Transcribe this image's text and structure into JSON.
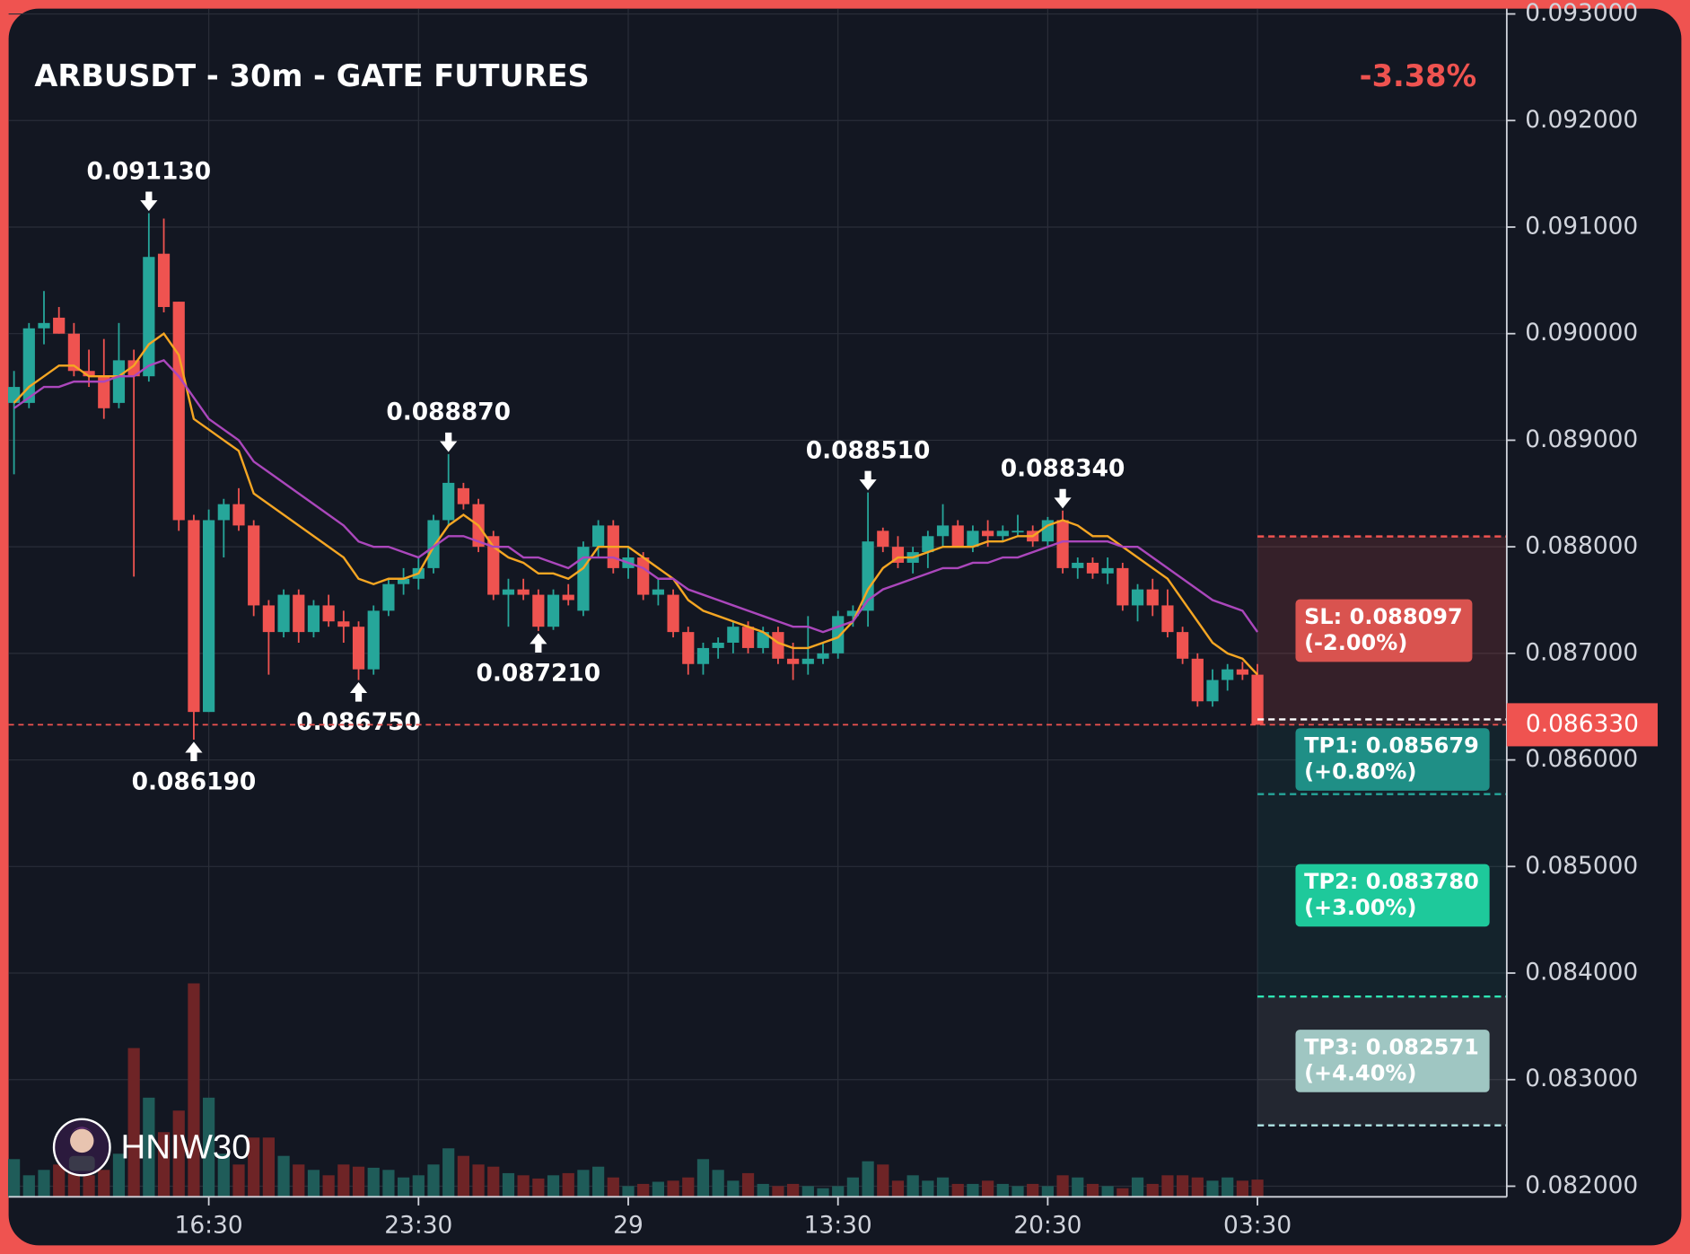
{
  "chart_data": {
    "type": "candlestick",
    "title": "ARBUSDT - 30m - GATE FUTURES",
    "change_label": "-3.38%",
    "watermark": "HNIW30",
    "up_color": "#26a69a",
    "down_color": "#ef5350",
    "grid": true,
    "categories": [
      null,
      null,
      null,
      null,
      null,
      null,
      null,
      null,
      null,
      null,
      null,
      null,
      null,
      "16:30",
      null,
      null,
      null,
      null,
      null,
      null,
      null,
      null,
      null,
      null,
      null,
      null,
      null,
      "23:30",
      null,
      null,
      null,
      null,
      null,
      null,
      null,
      null,
      null,
      null,
      null,
      null,
      null,
      "29",
      null,
      null,
      null,
      null,
      null,
      null,
      null,
      null,
      null,
      null,
      null,
      null,
      null,
      "13:30",
      null,
      null,
      null,
      null,
      null,
      null,
      null,
      null,
      null,
      null,
      null,
      null,
      null,
      "20:30",
      null,
      null,
      null,
      null,
      null,
      null,
      null,
      null,
      null,
      null,
      null,
      null,
      null,
      "03:30"
    ],
    "ohlc": {
      "open": [
        0.08935,
        0.08935,
        0.09005,
        0.09015,
        0.09,
        0.08965,
        0.0896,
        0.08935,
        0.08975,
        0.0896,
        0.09075,
        0.0903,
        0.08825,
        0.08645,
        0.08825,
        0.0884,
        0.0882,
        0.08745,
        0.0872,
        0.08755,
        0.0872,
        0.08745,
        0.0873,
        0.08725,
        0.08685,
        0.0874,
        0.08765,
        0.0877,
        0.0878,
        0.08825,
        0.08855,
        0.0884,
        0.0881,
        0.08755,
        0.0876,
        0.08755,
        0.08725,
        0.08755,
        0.0874,
        0.088,
        0.0882,
        0.0878,
        0.0879,
        0.08755,
        0.08755,
        0.0872,
        0.0869,
        0.08705,
        0.0871,
        0.08725,
        0.08705,
        0.0872,
        0.08695,
        0.0869,
        0.08695,
        0.087,
        0.08735,
        0.0874,
        0.08815,
        0.088,
        0.08785,
        0.08795,
        0.0881,
        0.0882,
        0.088,
        0.08815,
        0.0881,
        0.08815,
        0.08815,
        0.08805,
        0.08825,
        0.0878,
        0.08785,
        0.08775,
        0.0878,
        0.08745,
        0.0876,
        0.08745,
        0.0872,
        0.08695,
        0.08655,
        0.08675,
        0.08685,
        0.0868
      ],
      "high": [
        0.08965,
        0.0901,
        0.0904,
        0.09025,
        0.0901,
        0.08985,
        0.08995,
        0.0901,
        0.08985,
        0.09113,
        0.09108,
        0.0903,
        0.0883,
        0.08835,
        0.08845,
        0.08855,
        0.08825,
        0.0875,
        0.0876,
        0.0876,
        0.0875,
        0.08755,
        0.0874,
        0.0873,
        0.08745,
        0.0877,
        0.0878,
        0.0879,
        0.0883,
        0.08887,
        0.0886,
        0.08845,
        0.08815,
        0.0877,
        0.0877,
        0.0876,
        0.0876,
        0.08765,
        0.08805,
        0.08825,
        0.08825,
        0.088,
        0.08795,
        0.0877,
        0.0876,
        0.08725,
        0.0871,
        0.08715,
        0.0873,
        0.0873,
        0.08725,
        0.08725,
        0.0871,
        0.08735,
        0.0871,
        0.0874,
        0.08745,
        0.08851,
        0.08818,
        0.0881,
        0.088,
        0.08815,
        0.0884,
        0.08825,
        0.0882,
        0.08825,
        0.0882,
        0.0883,
        0.0882,
        0.08828,
        0.08834,
        0.0879,
        0.0879,
        0.0879,
        0.08785,
        0.08765,
        0.0877,
        0.0876,
        0.08725,
        0.087,
        0.08685,
        0.0869,
        0.08692,
        0.0869
      ],
      "low": [
        0.08868,
        0.0893,
        0.0899,
        0.09,
        0.0896,
        0.0895,
        0.0892,
        0.0893,
        0.08772,
        0.08955,
        0.0902,
        0.08815,
        0.08619,
        0.08645,
        0.0879,
        0.08815,
        0.08735,
        0.0868,
        0.08715,
        0.0871,
        0.08715,
        0.08725,
        0.0871,
        0.08675,
        0.0868,
        0.08735,
        0.08755,
        0.0876,
        0.08775,
        0.0882,
        0.08835,
        0.08795,
        0.0875,
        0.08725,
        0.0875,
        0.08721,
        0.08722,
        0.08745,
        0.08735,
        0.0879,
        0.08775,
        0.0877,
        0.0875,
        0.08745,
        0.08715,
        0.0868,
        0.0868,
        0.08695,
        0.087,
        0.087,
        0.087,
        0.0869,
        0.08675,
        0.0868,
        0.0869,
        0.08695,
        0.08725,
        0.08725,
        0.08795,
        0.0878,
        0.08775,
        0.0878,
        0.088,
        0.088,
        0.08795,
        0.088,
        0.08805,
        0.0881,
        0.088,
        0.088,
        0.08775,
        0.0877,
        0.0877,
        0.08765,
        0.0874,
        0.0873,
        0.08735,
        0.08715,
        0.0869,
        0.0865,
        0.0865,
        0.08665,
        0.08675,
        0.08633
      ],
      "close": [
        0.0895,
        0.09005,
        0.0901,
        0.09,
        0.08965,
        0.0896,
        0.0893,
        0.08975,
        0.0896,
        0.09072,
        0.09025,
        0.08825,
        0.08645,
        0.08825,
        0.0884,
        0.0882,
        0.08745,
        0.0872,
        0.08755,
        0.0872,
        0.08745,
        0.0873,
        0.08725,
        0.08685,
        0.0874,
        0.08765,
        0.0877,
        0.0878,
        0.08825,
        0.0886,
        0.0884,
        0.088,
        0.08755,
        0.0876,
        0.08755,
        0.08725,
        0.08755,
        0.0875,
        0.088,
        0.0882,
        0.0878,
        0.0879,
        0.08755,
        0.0876,
        0.0872,
        0.0869,
        0.08705,
        0.0871,
        0.08725,
        0.08705,
        0.0872,
        0.08695,
        0.0869,
        0.08695,
        0.087,
        0.08735,
        0.0874,
        0.08805,
        0.088,
        0.08785,
        0.08795,
        0.0881,
        0.0882,
        0.088,
        0.08815,
        0.0881,
        0.08815,
        0.08815,
        0.08805,
        0.08825,
        0.0878,
        0.08785,
        0.08775,
        0.0878,
        0.08745,
        0.0876,
        0.08745,
        0.0872,
        0.08695,
        0.08655,
        0.08675,
        0.08685,
        0.0868,
        0.08633
      ]
    },
    "volume": [
      35,
      20,
      25,
      30,
      35,
      20,
      25,
      40,
      138,
      92,
      60,
      80,
      198,
      92,
      40,
      30,
      55,
      55,
      38,
      30,
      25,
      20,
      30,
      28,
      27,
      25,
      18,
      20,
      30,
      45,
      38,
      30,
      28,
      22,
      20,
      17,
      20,
      22,
      25,
      28,
      18,
      10,
      12,
      14,
      15,
      18,
      35,
      25,
      15,
      22,
      12,
      10,
      12,
      10,
      8,
      10,
      18,
      33,
      30,
      15,
      20,
      15,
      18,
      12,
      12,
      15,
      12,
      10,
      12,
      10,
      20,
      18,
      12,
      10,
      8,
      18,
      12,
      20,
      20,
      18,
      15,
      18,
      15,
      16
    ],
    "volume_up_color": "#1f5c59",
    "volume_down_color": "#6e2426",
    "moving_averages": [
      {
        "color": "#f5a623",
        "values": [
          0.08935,
          0.0895,
          0.0896,
          0.0897,
          0.0897,
          0.0896,
          0.0896,
          0.0896,
          0.0897,
          0.0899,
          0.09,
          0.0898,
          0.0892,
          0.0891,
          0.089,
          0.0889,
          0.0885,
          0.0884,
          0.0883,
          0.0882,
          0.0881,
          0.088,
          0.0879,
          0.0877,
          0.08765,
          0.0877,
          0.0877,
          0.08775,
          0.088,
          0.0882,
          0.0883,
          0.0882,
          0.088,
          0.0879,
          0.08785,
          0.08775,
          0.08775,
          0.0877,
          0.0878,
          0.088,
          0.088,
          0.088,
          0.0879,
          0.0878,
          0.0877,
          0.0875,
          0.0874,
          0.08735,
          0.0873,
          0.08725,
          0.0872,
          0.0871,
          0.08705,
          0.08705,
          0.0871,
          0.08715,
          0.0873,
          0.0876,
          0.0878,
          0.0879,
          0.0879,
          0.08795,
          0.088,
          0.088,
          0.088,
          0.08805,
          0.08805,
          0.0881,
          0.0881,
          0.0882,
          0.08825,
          0.0882,
          0.0881,
          0.0881,
          0.088,
          0.0879,
          0.0878,
          0.0877,
          0.0875,
          0.0873,
          0.0871,
          0.087,
          0.08695,
          0.0868
        ]
      },
      {
        "color": "#ab47bc",
        "values": [
          0.0893,
          0.0894,
          0.0895,
          0.0895,
          0.08955,
          0.08955,
          0.08955,
          0.0896,
          0.0896,
          0.0897,
          0.08975,
          0.0896,
          0.0894,
          0.0892,
          0.0891,
          0.089,
          0.0888,
          0.0887,
          0.0886,
          0.0885,
          0.0884,
          0.0883,
          0.0882,
          0.08805,
          0.088,
          0.088,
          0.08795,
          0.0879,
          0.088,
          0.0881,
          0.0881,
          0.08805,
          0.088,
          0.088,
          0.0879,
          0.0879,
          0.08785,
          0.0878,
          0.0879,
          0.0879,
          0.0879,
          0.08785,
          0.0878,
          0.0877,
          0.0877,
          0.0876,
          0.08755,
          0.0875,
          0.08745,
          0.0874,
          0.08735,
          0.0873,
          0.08725,
          0.08725,
          0.0872,
          0.08725,
          0.0873,
          0.0875,
          0.0876,
          0.08765,
          0.0877,
          0.08775,
          0.0878,
          0.0878,
          0.08785,
          0.08785,
          0.0879,
          0.0879,
          0.08795,
          0.088,
          0.08805,
          0.08805,
          0.08805,
          0.08805,
          0.088,
          0.088,
          0.0879,
          0.0878,
          0.0877,
          0.0876,
          0.0875,
          0.08745,
          0.0874,
          0.0872
        ]
      }
    ],
    "ylim": [
      0.0819,
      0.09305
    ],
    "yticks": [
      {
        "value": 0.082,
        "label": "0.082000"
      },
      {
        "value": 0.083,
        "label": "0.083000"
      },
      {
        "value": 0.084,
        "label": "0.084000"
      },
      {
        "value": 0.085,
        "label": "0.085000"
      },
      {
        "value": 0.086,
        "label": "0.086000"
      },
      {
        "value": 0.087,
        "label": "0.087000"
      },
      {
        "value": 0.088,
        "label": "0.088000"
      },
      {
        "value": 0.089,
        "label": "0.089000"
      },
      {
        "value": 0.09,
        "label": "0.090000"
      },
      {
        "value": 0.091,
        "label": "0.091000"
      },
      {
        "value": 0.092,
        "label": "0.092000"
      },
      {
        "value": 0.093,
        "label": "0.093000"
      }
    ],
    "annotations": [
      {
        "kind": "high",
        "price": {
          "value": 0.09113,
          "label": "0.091130"
        }
      },
      {
        "kind": "low",
        "price": {
          "value": 0.08619,
          "label": "0.086190"
        }
      },
      {
        "kind": "high",
        "price": {
          "value": 0.08887,
          "label": "0.088870"
        }
      },
      {
        "kind": "low",
        "price": {
          "value": 0.08721,
          "label": "0.087210"
        }
      },
      {
        "kind": "low",
        "price": {
          "value": 0.08675,
          "label": "0.086750"
        }
      },
      {
        "kind": "high",
        "price": {
          "value": 0.08851,
          "label": "0.088510"
        }
      },
      {
        "kind": "high",
        "price": {
          "value": 0.08834,
          "label": "0.088340"
        }
      }
    ],
    "last_price": {
      "value": 0.08633,
      "label": "0.086330"
    },
    "levels": [
      {
        "value": 0.088097,
        "label": "SL: 0.088097",
        "pct": "(-2.00%)",
        "box_color": "#d9534f",
        "line_color": "#ef5350",
        "zone_color": "rgba(239,83,80,0.16)"
      },
      {
        "value": 0.085679,
        "label": "TP1: 0.085679",
        "pct": "(+0.80%)",
        "box_color": "#1f8f86",
        "line_color": "#26a69a",
        "zone_color": "rgba(38,166,154,0.09)"
      },
      {
        "value": 0.08378,
        "label": "TP2: 0.083780",
        "pct": "(+3.00%)",
        "box_color": "#1ec99b",
        "line_color": "#2ee6b4",
        "zone_color": "rgba(38,166,154,0.09)"
      },
      {
        "value": 0.082571,
        "label": "TP3: 0.082571",
        "pct": "(+4.40%)",
        "box_color": "#9fc6c2",
        "line_color": "#b2e6e6",
        "zone_color": "rgba(255,255,255,0.07)"
      }
    ]
  }
}
